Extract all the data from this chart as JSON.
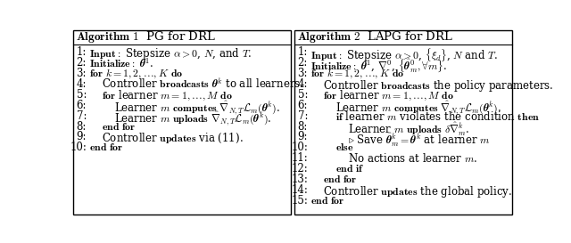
{
  "bg_color": "#ffffff",
  "border_color": "#000000",
  "font_size": 8.5,
  "title_font_size": 9.5,
  "left_title": "Algorithm 1  PG for DRL",
  "right_title": "Algorithm 2  LAPG for DRL",
  "left_lines": [
    [
      "1:",
      "Input: Stepsize a>0, N, and T."
    ],
    [
      "2:",
      "Initialize: theta^1."
    ],
    [
      "3:",
      "for k=1,2,...,K do"
    ],
    [
      "4:",
      "  Controller broadcasts theta^k to all learners."
    ],
    [
      "5:",
      "  for learner m=1,...,M do"
    ],
    [
      "6:",
      "    Learner m computes nabla(theta^k)."
    ],
    [
      "7:",
      "    Learner m uploads nabla(theta^k)."
    ],
    [
      "8:",
      "  end for"
    ],
    [
      "9:",
      "  Controller updates via (11)."
    ],
    [
      "10:",
      "end for"
    ]
  ],
  "right_lines": [
    [
      "1:",
      "Input: Stepsize a>0, {xi_d}, N and T."
    ],
    [
      "2:",
      "Initialize: theta^1, nabla^0, {hat_theta_m^0, forall m}."
    ],
    [
      "3:",
      "for k=1,2,...,K do"
    ],
    [
      "4:",
      "  Controller broadcasts the policy parameters."
    ],
    [
      "5:",
      "  for learner m=1,...,M do"
    ],
    [
      "6:",
      "    Learner m computes nabla(theta^k)."
    ],
    [
      "7:",
      "    if learner m violates the condition then"
    ],
    [
      "8:",
      "      Learner m uploads delta_nabla_m^k."
    ],
    [
      "9:",
      "      Save hat_theta_m^k = theta^k at learner m"
    ],
    [
      "10:",
      "    else"
    ],
    [
      "11:",
      "      No actions at learner m."
    ],
    [
      "12:",
      "    end if"
    ],
    [
      "13:",
      "  end for"
    ],
    [
      "14:",
      "  Controller updates the global policy."
    ],
    [
      "15:",
      "end for"
    ]
  ]
}
